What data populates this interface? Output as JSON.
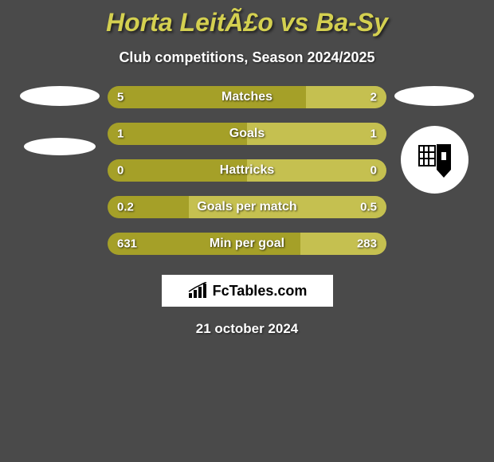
{
  "title": "Horta LeitÃ£o vs Ba-Sy",
  "subtitle": "Club competitions, Season 2024/2025",
  "date": "21 october 2024",
  "footer_brand": "FcTables.com",
  "colors": {
    "background": "#4a4a4a",
    "bar_left": "#a5a028",
    "bar_right": "#c5c050",
    "text": "#ffffff",
    "title_color": "#d4d050"
  },
  "stats": [
    {
      "label": "Matches",
      "left_value": "5",
      "right_value": "2",
      "left_pct": 71,
      "right_pct": 29
    },
    {
      "label": "Goals",
      "left_value": "1",
      "right_value": "1",
      "left_pct": 50,
      "right_pct": 50
    },
    {
      "label": "Hattricks",
      "left_value": "0",
      "right_value": "0",
      "left_pct": 50,
      "right_pct": 50
    },
    {
      "label": "Goals per match",
      "left_value": "0.2",
      "right_value": "0.5",
      "left_pct": 29,
      "right_pct": 71
    },
    {
      "label": "Min per goal",
      "left_value": "631",
      "right_value": "283",
      "left_pct": 69,
      "right_pct": 31
    }
  ]
}
